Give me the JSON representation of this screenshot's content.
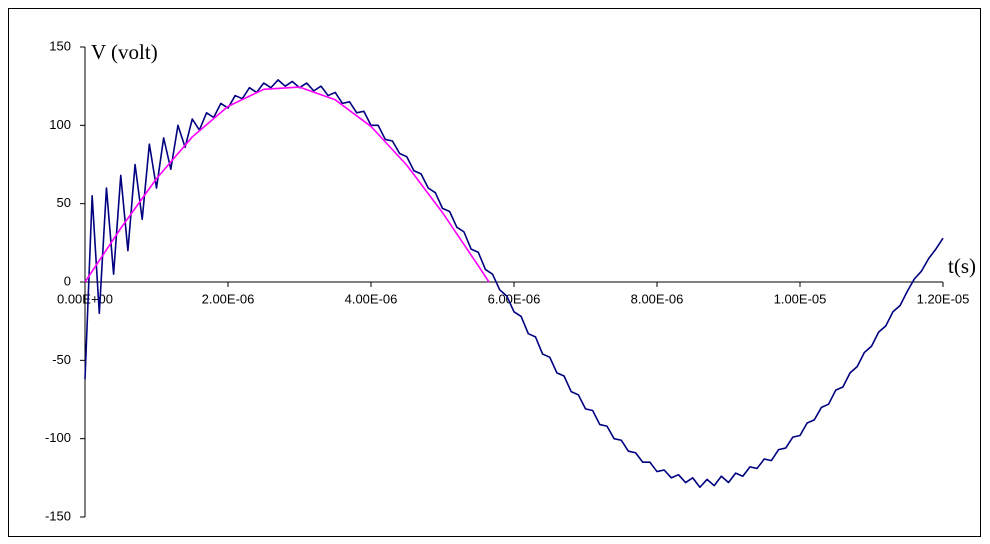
{
  "chart_data": {
    "type": "line",
    "xlabel": "t(s)",
    "ylabel": "V (volt)",
    "xlim": [
      0,
      1.2e-05
    ],
    "ylim": [
      -150,
      150
    ],
    "xticks": [
      {
        "value": 0,
        "label": "0.00E+00"
      },
      {
        "value": 2e-06,
        "label": "2.00E-06"
      },
      {
        "value": 4e-06,
        "label": "4.00E-06"
      },
      {
        "value": 6e-06,
        "label": "6.00E-06"
      },
      {
        "value": 8e-06,
        "label": "8.00E-06"
      },
      {
        "value": 1e-05,
        "label": "1.00E-05"
      },
      {
        "value": 1.2e-05,
        "label": "1.20E-05"
      }
    ],
    "yticks": [
      -150,
      -100,
      -50,
      0,
      50,
      100,
      150
    ],
    "series": [
      {
        "color": "#000080",
        "x": [
          0,
          1e-07,
          2e-07,
          3e-07,
          4e-07,
          5e-07,
          6e-07,
          7e-07,
          8e-07,
          9e-07,
          1e-06,
          1.1e-06,
          1.2e-06,
          1.3e-06,
          1.4e-06,
          1.5e-06,
          1.6e-06,
          1.7e-06,
          1.8e-06,
          1.9e-06,
          2e-06,
          2.1e-06,
          2.2e-06,
          2.3e-06,
          2.4e-06,
          2.5e-06,
          2.6e-06,
          2.7e-06,
          2.8e-06,
          2.9e-06,
          3e-06,
          3.1e-06,
          3.2e-06,
          3.3e-06,
          3.4e-06,
          3.5e-06,
          3.6e-06,
          3.7e-06,
          3.8e-06,
          3.9e-06,
          4e-06,
          4.1e-06,
          4.2e-06,
          4.3e-06,
          4.4e-06,
          4.5e-06,
          4.6e-06,
          4.7e-06,
          4.8e-06,
          4.9e-06,
          5e-06,
          5.1e-06,
          5.2e-06,
          5.3e-06,
          5.4e-06,
          5.5e-06,
          5.6e-06,
          5.7e-06,
          5.8e-06,
          5.9e-06,
          6e-06,
          6.1e-06,
          6.2e-06,
          6.3e-06,
          6.4e-06,
          6.5e-06,
          6.6e-06,
          6.7e-06,
          6.8e-06,
          6.9e-06,
          7e-06,
          7.1e-06,
          7.2e-06,
          7.3e-06,
          7.4e-06,
          7.5e-06,
          7.6e-06,
          7.7e-06,
          7.8e-06,
          7.9e-06,
          8e-06,
          8.1e-06,
          8.2e-06,
          8.3e-06,
          8.4e-06,
          8.5e-06,
          8.6e-06,
          8.7e-06,
          8.8e-06,
          8.9e-06,
          9e-06,
          9.1e-06,
          9.2e-06,
          9.3e-06,
          9.4e-06,
          9.5e-06,
          9.6e-06,
          9.7e-06,
          9.8e-06,
          9.9e-06,
          1e-05,
          1.01e-05,
          1.02e-05,
          1.03e-05,
          1.04e-05,
          1.05e-05,
          1.06e-05,
          1.07e-05,
          1.08e-05,
          1.09e-05,
          1.1e-05,
          1.11e-05,
          1.12e-05,
          1.13e-05,
          1.14e-05,
          1.15e-05,
          1.16e-05,
          1.17e-05,
          1.18e-05,
          1.19e-05,
          1.2e-05
        ],
        "values": [
          -62,
          55,
          -20,
          60,
          5,
          68,
          20,
          75,
          40,
          88,
          60,
          92,
          72,
          100,
          86,
          104,
          97,
          108,
          105,
          114,
          111,
          119,
          117,
          124,
          121,
          127,
          124,
          129,
          125,
          128,
          124,
          127,
          122,
          125,
          119,
          121,
          114,
          115,
          108,
          109,
          100,
          100,
          91,
          90,
          82,
          80,
          71,
          69,
          60,
          57,
          47,
          45,
          35,
          32,
          21,
          19,
          8,
          5,
          -5,
          -9,
          -19,
          -22,
          -33,
          -35,
          -46,
          -48,
          -58,
          -60,
          -70,
          -72,
          -81,
          -82,
          -91,
          -92,
          -100,
          -101,
          -108,
          -109,
          -115,
          -115,
          -121,
          -120,
          -125,
          -123,
          -128,
          -125,
          -131,
          -126,
          -130,
          -124,
          -128,
          -122,
          -124,
          -118,
          -119,
          -113,
          -114,
          -107,
          -106,
          -99,
          -98,
          -90,
          -88,
          -80,
          -78,
          -69,
          -67,
          -58,
          -54,
          -45,
          -41,
          -32,
          -28,
          -19,
          -15,
          -6,
          2,
          7,
          15,
          21,
          28
        ]
      },
      {
        "color": "#ff00ff",
        "x": [
          0,
          5e-07,
          1e-06,
          1.5e-06,
          2e-06,
          2.5e-06,
          3e-06,
          3.5e-06,
          4e-06,
          4.5e-06,
          5e-06,
          5.5e-06,
          5.65e-06
        ],
        "values": [
          0,
          34.3,
          66.0,
          92.6,
          112.1,
          123.0,
          124.4,
          116.3,
          99.3,
          74.6,
          44.3,
          10.4,
          0
        ]
      }
    ]
  }
}
